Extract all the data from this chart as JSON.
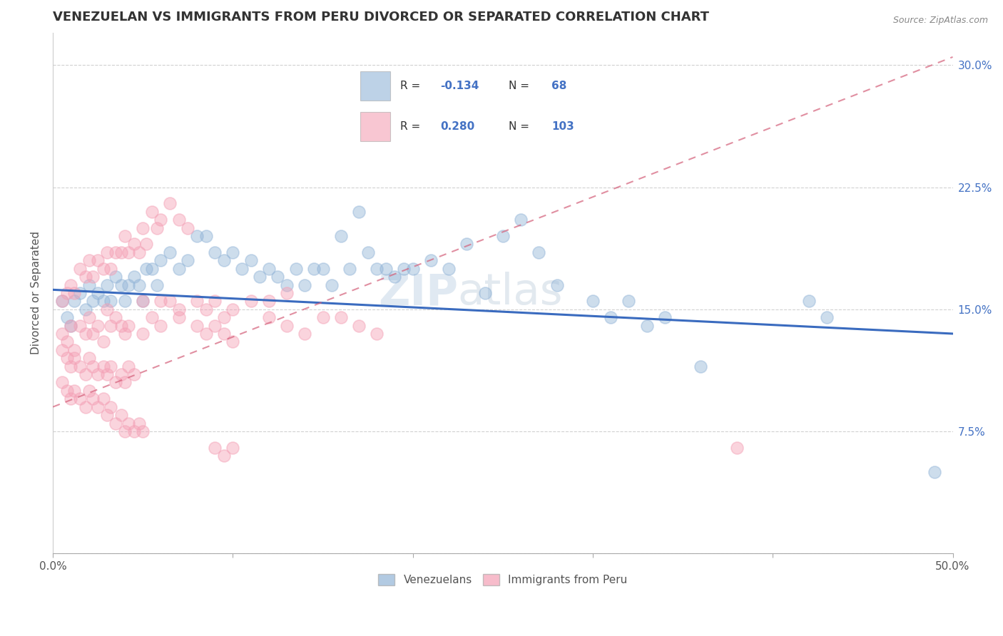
{
  "title": "VENEZUELAN VS IMMIGRANTS FROM PERU DIVORCED OR SEPARATED CORRELATION CHART",
  "source": "Source: ZipAtlas.com",
  "ylabel": "Divorced or Separated",
  "xlim": [
    0.0,
    0.5
  ],
  "ylim": [
    0.0,
    0.32
  ],
  "blue_color": "#92b4d7",
  "pink_color": "#f4a0b5",
  "trend_blue": "#3a6bbf",
  "trend_pink": "#d4607a",
  "title_fontsize": 13,
  "label_fontsize": 11,
  "tick_fontsize": 11,
  "venezuelan_points": [
    [
      0.005,
      0.155
    ],
    [
      0.008,
      0.145
    ],
    [
      0.01,
      0.14
    ],
    [
      0.012,
      0.155
    ],
    [
      0.015,
      0.16
    ],
    [
      0.018,
      0.15
    ],
    [
      0.02,
      0.165
    ],
    [
      0.022,
      0.155
    ],
    [
      0.025,
      0.16
    ],
    [
      0.028,
      0.155
    ],
    [
      0.03,
      0.165
    ],
    [
      0.032,
      0.155
    ],
    [
      0.035,
      0.17
    ],
    [
      0.038,
      0.165
    ],
    [
      0.04,
      0.155
    ],
    [
      0.042,
      0.165
    ],
    [
      0.045,
      0.17
    ],
    [
      0.048,
      0.165
    ],
    [
      0.05,
      0.155
    ],
    [
      0.052,
      0.175
    ],
    [
      0.055,
      0.175
    ],
    [
      0.058,
      0.165
    ],
    [
      0.06,
      0.18
    ],
    [
      0.065,
      0.185
    ],
    [
      0.07,
      0.175
    ],
    [
      0.075,
      0.18
    ],
    [
      0.08,
      0.195
    ],
    [
      0.085,
      0.195
    ],
    [
      0.09,
      0.185
    ],
    [
      0.095,
      0.18
    ],
    [
      0.1,
      0.185
    ],
    [
      0.105,
      0.175
    ],
    [
      0.11,
      0.18
    ],
    [
      0.115,
      0.17
    ],
    [
      0.12,
      0.175
    ],
    [
      0.125,
      0.17
    ],
    [
      0.13,
      0.165
    ],
    [
      0.135,
      0.175
    ],
    [
      0.14,
      0.165
    ],
    [
      0.145,
      0.175
    ],
    [
      0.15,
      0.175
    ],
    [
      0.155,
      0.165
    ],
    [
      0.16,
      0.195
    ],
    [
      0.165,
      0.175
    ],
    [
      0.17,
      0.21
    ],
    [
      0.175,
      0.185
    ],
    [
      0.18,
      0.175
    ],
    [
      0.185,
      0.175
    ],
    [
      0.19,
      0.17
    ],
    [
      0.195,
      0.175
    ],
    [
      0.2,
      0.175
    ],
    [
      0.21,
      0.18
    ],
    [
      0.22,
      0.175
    ],
    [
      0.23,
      0.19
    ],
    [
      0.24,
      0.16
    ],
    [
      0.25,
      0.195
    ],
    [
      0.26,
      0.205
    ],
    [
      0.27,
      0.185
    ],
    [
      0.28,
      0.165
    ],
    [
      0.3,
      0.155
    ],
    [
      0.31,
      0.145
    ],
    [
      0.32,
      0.155
    ],
    [
      0.33,
      0.14
    ],
    [
      0.34,
      0.145
    ],
    [
      0.36,
      0.115
    ],
    [
      0.42,
      0.155
    ],
    [
      0.43,
      0.145
    ],
    [
      0.49,
      0.05
    ]
  ],
  "peru_points": [
    [
      0.005,
      0.135
    ],
    [
      0.008,
      0.13
    ],
    [
      0.01,
      0.14
    ],
    [
      0.012,
      0.125
    ],
    [
      0.015,
      0.14
    ],
    [
      0.018,
      0.135
    ],
    [
      0.02,
      0.145
    ],
    [
      0.022,
      0.135
    ],
    [
      0.025,
      0.14
    ],
    [
      0.028,
      0.13
    ],
    [
      0.03,
      0.15
    ],
    [
      0.032,
      0.14
    ],
    [
      0.035,
      0.145
    ],
    [
      0.038,
      0.14
    ],
    [
      0.04,
      0.135
    ],
    [
      0.042,
      0.14
    ],
    [
      0.005,
      0.155
    ],
    [
      0.008,
      0.16
    ],
    [
      0.01,
      0.165
    ],
    [
      0.012,
      0.16
    ],
    [
      0.015,
      0.175
    ],
    [
      0.018,
      0.17
    ],
    [
      0.02,
      0.18
    ],
    [
      0.022,
      0.17
    ],
    [
      0.025,
      0.18
    ],
    [
      0.028,
      0.175
    ],
    [
      0.03,
      0.185
    ],
    [
      0.032,
      0.175
    ],
    [
      0.035,
      0.185
    ],
    [
      0.038,
      0.185
    ],
    [
      0.04,
      0.195
    ],
    [
      0.042,
      0.185
    ],
    [
      0.045,
      0.19
    ],
    [
      0.048,
      0.185
    ],
    [
      0.05,
      0.2
    ],
    [
      0.052,
      0.19
    ],
    [
      0.055,
      0.21
    ],
    [
      0.058,
      0.2
    ],
    [
      0.06,
      0.205
    ],
    [
      0.065,
      0.215
    ],
    [
      0.07,
      0.205
    ],
    [
      0.075,
      0.2
    ],
    [
      0.005,
      0.125
    ],
    [
      0.008,
      0.12
    ],
    [
      0.01,
      0.115
    ],
    [
      0.012,
      0.12
    ],
    [
      0.015,
      0.115
    ],
    [
      0.018,
      0.11
    ],
    [
      0.02,
      0.12
    ],
    [
      0.022,
      0.115
    ],
    [
      0.025,
      0.11
    ],
    [
      0.028,
      0.115
    ],
    [
      0.03,
      0.11
    ],
    [
      0.032,
      0.115
    ],
    [
      0.035,
      0.105
    ],
    [
      0.038,
      0.11
    ],
    [
      0.04,
      0.105
    ],
    [
      0.042,
      0.115
    ],
    [
      0.045,
      0.11
    ],
    [
      0.005,
      0.105
    ],
    [
      0.008,
      0.1
    ],
    [
      0.01,
      0.095
    ],
    [
      0.012,
      0.1
    ],
    [
      0.015,
      0.095
    ],
    [
      0.018,
      0.09
    ],
    [
      0.02,
      0.1
    ],
    [
      0.022,
      0.095
    ],
    [
      0.025,
      0.09
    ],
    [
      0.028,
      0.095
    ],
    [
      0.03,
      0.085
    ],
    [
      0.032,
      0.09
    ],
    [
      0.035,
      0.08
    ],
    [
      0.038,
      0.085
    ],
    [
      0.04,
      0.075
    ],
    [
      0.042,
      0.08
    ],
    [
      0.045,
      0.075
    ],
    [
      0.048,
      0.08
    ],
    [
      0.05,
      0.075
    ],
    [
      0.08,
      0.155
    ],
    [
      0.085,
      0.15
    ],
    [
      0.09,
      0.155
    ],
    [
      0.095,
      0.145
    ],
    [
      0.1,
      0.15
    ],
    [
      0.11,
      0.155
    ],
    [
      0.12,
      0.145
    ],
    [
      0.13,
      0.14
    ],
    [
      0.14,
      0.135
    ],
    [
      0.15,
      0.145
    ],
    [
      0.16,
      0.145
    ],
    [
      0.17,
      0.14
    ],
    [
      0.18,
      0.135
    ],
    [
      0.05,
      0.155
    ],
    [
      0.06,
      0.155
    ],
    [
      0.07,
      0.15
    ],
    [
      0.05,
      0.135
    ],
    [
      0.055,
      0.145
    ],
    [
      0.06,
      0.14
    ],
    [
      0.065,
      0.155
    ],
    [
      0.07,
      0.145
    ],
    [
      0.08,
      0.14
    ],
    [
      0.085,
      0.135
    ],
    [
      0.09,
      0.14
    ],
    [
      0.095,
      0.135
    ],
    [
      0.1,
      0.13
    ],
    [
      0.12,
      0.155
    ],
    [
      0.13,
      0.16
    ],
    [
      0.09,
      0.065
    ],
    [
      0.095,
      0.06
    ],
    [
      0.1,
      0.065
    ],
    [
      0.38,
      0.065
    ]
  ]
}
